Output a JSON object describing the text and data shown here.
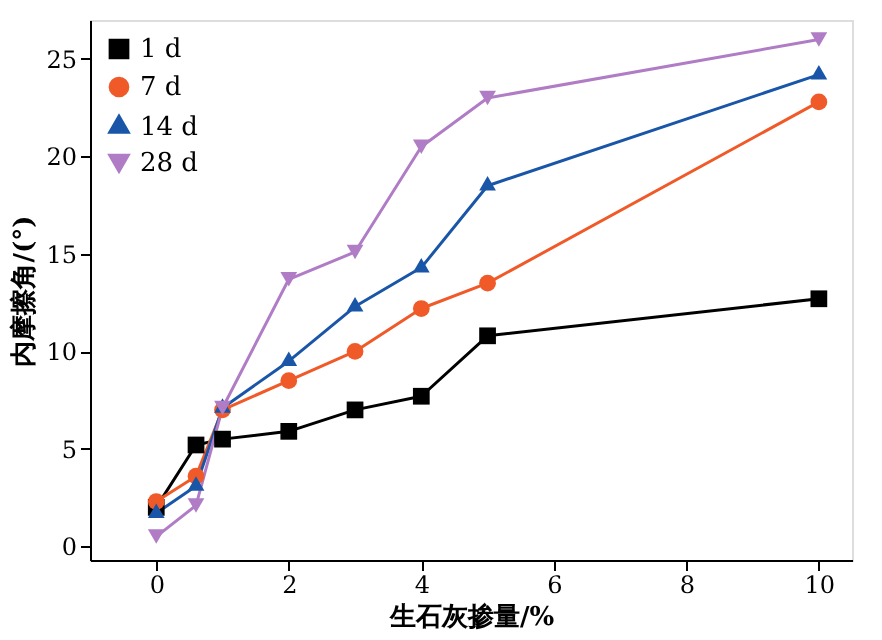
{
  "chart_data": {
    "type": "line",
    "xlabel": "生石灰掺量/%",
    "ylabel": "内摩擦角/(°)",
    "x": [
      0,
      0.6,
      1,
      2,
      3,
      4,
      5,
      10
    ],
    "series": [
      {
        "name": "1 d",
        "color": "#000000",
        "marker": "square",
        "values": [
          2.0,
          5.2,
          5.5,
          5.9,
          7.0,
          7.7,
          10.8,
          12.7
        ]
      },
      {
        "name": "7 d",
        "color": "#f05a28",
        "marker": "circle",
        "values": [
          2.3,
          3.6,
          7.0,
          8.5,
          10.0,
          12.2,
          13.5,
          22.8
        ]
      },
      {
        "name": "14 d",
        "color": "#1a56a8",
        "marker": "triangle",
        "values": [
          1.7,
          3.1,
          7.1,
          9.5,
          12.3,
          14.3,
          18.5,
          24.2
        ]
      },
      {
        "name": "28 d",
        "color": "#b07cc6",
        "marker": "triangle-down",
        "values": [
          0.5,
          2.1,
          7.1,
          13.7,
          15.1,
          20.5,
          23.0,
          26.0
        ]
      }
    ],
    "xlim": [
      -1,
      10.5
    ],
    "ylim": [
      -0.7,
      27
    ],
    "xticks": [
      0,
      2,
      4,
      6,
      8,
      10
    ],
    "yticks": [
      0,
      5,
      10,
      15,
      20,
      25
    ],
    "grid": false,
    "legend": "top left",
    "line_style": "solid"
  }
}
